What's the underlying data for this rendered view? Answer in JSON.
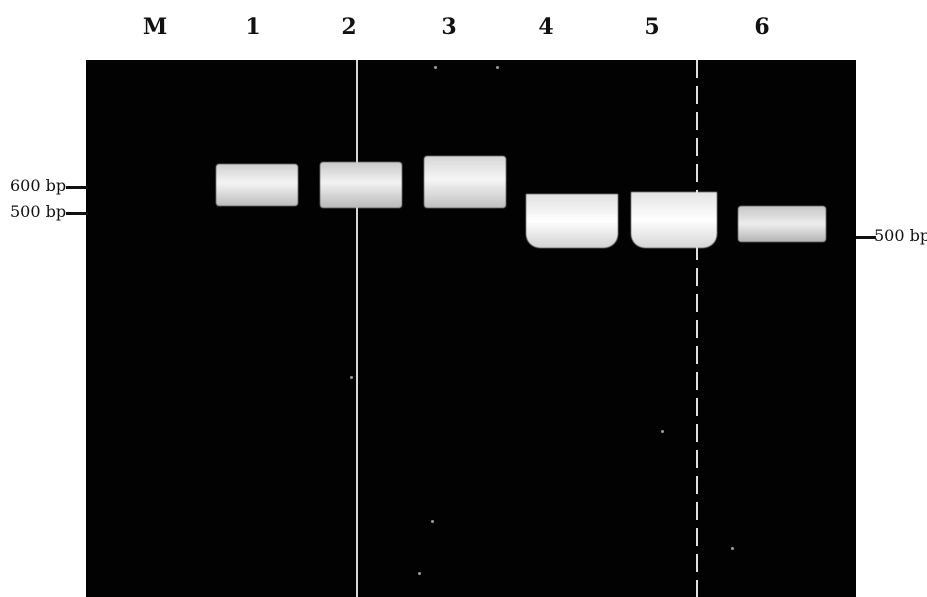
{
  "lanes": [
    "M",
    "1",
    "2",
    "3",
    "4",
    "5",
    "6"
  ],
  "markers_left": [
    "600 bp",
    "500 bp"
  ],
  "marker_right": "500 bp"
}
